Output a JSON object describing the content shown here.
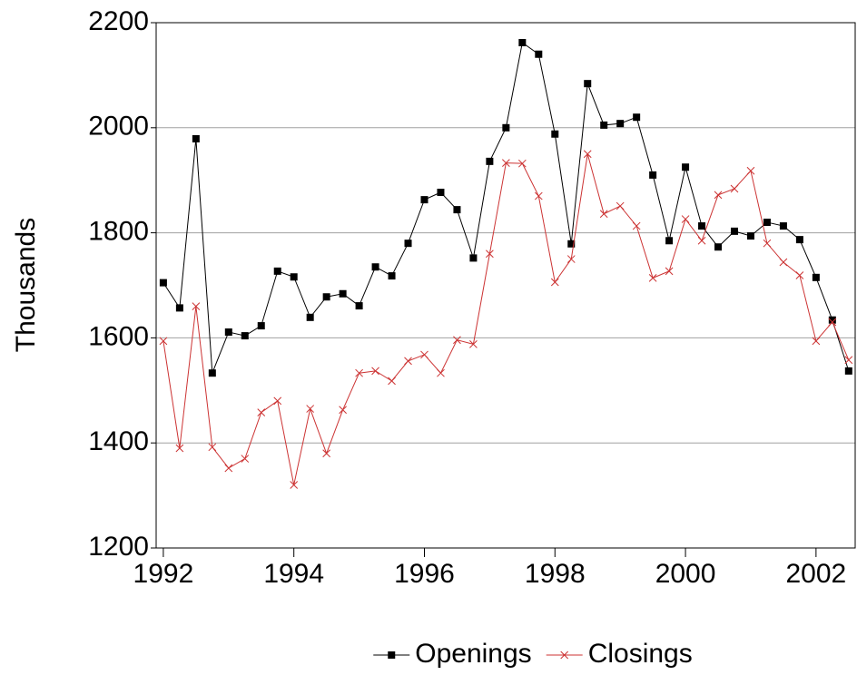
{
  "chart_data": {
    "type": "line",
    "y_label": "Thousands",
    "x": [
      1992,
      1992.25,
      1992.5,
      1992.75,
      1993,
      1993.25,
      1993.5,
      1993.75,
      1994,
      1994.25,
      1994.5,
      1994.75,
      1995,
      1995.25,
      1995.5,
      1995.75,
      1996,
      1996.25,
      1996.5,
      1996.75,
      1997,
      1997.25,
      1997.5,
      1997.75,
      1998,
      1998.25,
      1998.5,
      1998.75,
      1999,
      1999.25,
      1999.5,
      1999.75,
      2000,
      2000.25,
      2000.5,
      2000.75,
      2001,
      2001.25,
      2001.5,
      2001.75,
      2002,
      2002.25,
      2002.5
    ],
    "series": [
      {
        "name": "Openings",
        "color": "#000000",
        "marker": "square",
        "values": [
          1705,
          1657,
          1979,
          1533,
          1611,
          1604,
          1623,
          1727,
          1716,
          1639,
          1678,
          1684,
          1661,
          1735,
          1718,
          1780,
          1863,
          1877,
          1844,
          1752,
          1936,
          2000,
          2162,
          2140,
          1988,
          1779,
          2084,
          2005,
          2008,
          2020,
          1910,
          1785,
          1925,
          1813,
          1773,
          1803,
          1794,
          1820,
          1813,
          1787,
          1715,
          1634,
          1537
        ]
      },
      {
        "name": "Closings",
        "color": "#cc3333",
        "marker": "cross",
        "values": [
          1594,
          1390,
          1660,
          1392,
          1352,
          1370,
          1458,
          1480,
          1320,
          1465,
          1380,
          1463,
          1533,
          1537,
          1518,
          1556,
          1568,
          1533,
          1596,
          1588,
          1760,
          1933,
          1932,
          1870,
          1706,
          1750,
          1950,
          1836,
          1851,
          1813,
          1714,
          1727,
          1826,
          1785,
          1872,
          1884,
          1918,
          1780,
          1744,
          1719,
          1594,
          1630,
          1558
        ]
      }
    ],
    "xlim": [
      1991.89,
      2002.6
    ],
    "xticks": [
      1992,
      1994,
      1996,
      1998,
      2000,
      2002
    ],
    "ylim": [
      1200,
      2200
    ],
    "yticks": [
      1200,
      1400,
      1600,
      1800,
      2000,
      2200
    ],
    "grid": true,
    "legend": "bottom"
  }
}
